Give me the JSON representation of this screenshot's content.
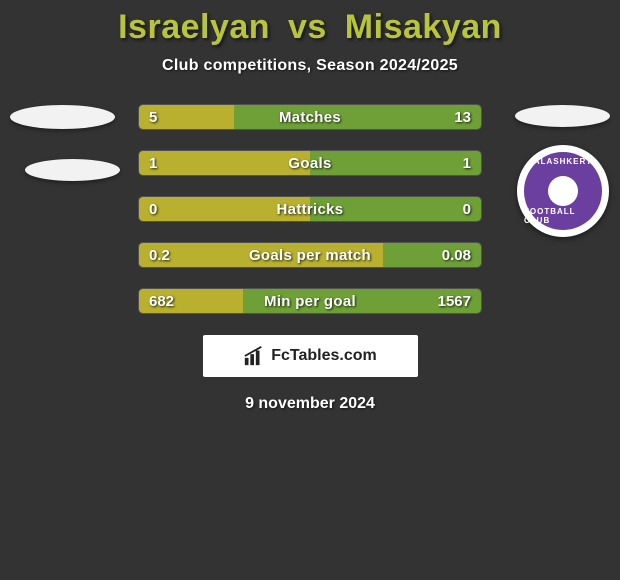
{
  "title_color": "#b8c43a",
  "player_left": "Israelyan",
  "vs_text": "vs",
  "player_right": "Misakyan",
  "subtitle": "Club competitions, Season 2024/2025",
  "date": "9 november 2024",
  "footer_brand": "FcTables.com",
  "right_club": {
    "name_top": "ALASHKERT",
    "name_bottom": "FOOTBALL CLUB",
    "primary_color": "#6a3fa0"
  },
  "bar_colors": {
    "left": "#b8b02e",
    "right": "#6ea037"
  },
  "bars": [
    {
      "label": "Matches",
      "left_val": "5",
      "right_val": "13",
      "left_pct": 27.8,
      "right_pct": 72.2
    },
    {
      "label": "Goals",
      "left_val": "1",
      "right_val": "1",
      "left_pct": 50.0,
      "right_pct": 50.0
    },
    {
      "label": "Hattricks",
      "left_val": "0",
      "right_val": "0",
      "left_pct": 50.0,
      "right_pct": 50.0
    },
    {
      "label": "Goals per match",
      "left_val": "0.2",
      "right_val": "0.08",
      "left_pct": 71.4,
      "right_pct": 28.6
    },
    {
      "label": "Min per goal",
      "left_val": "682",
      "right_val": "1567",
      "left_pct": 30.3,
      "right_pct": 69.7
    }
  ]
}
